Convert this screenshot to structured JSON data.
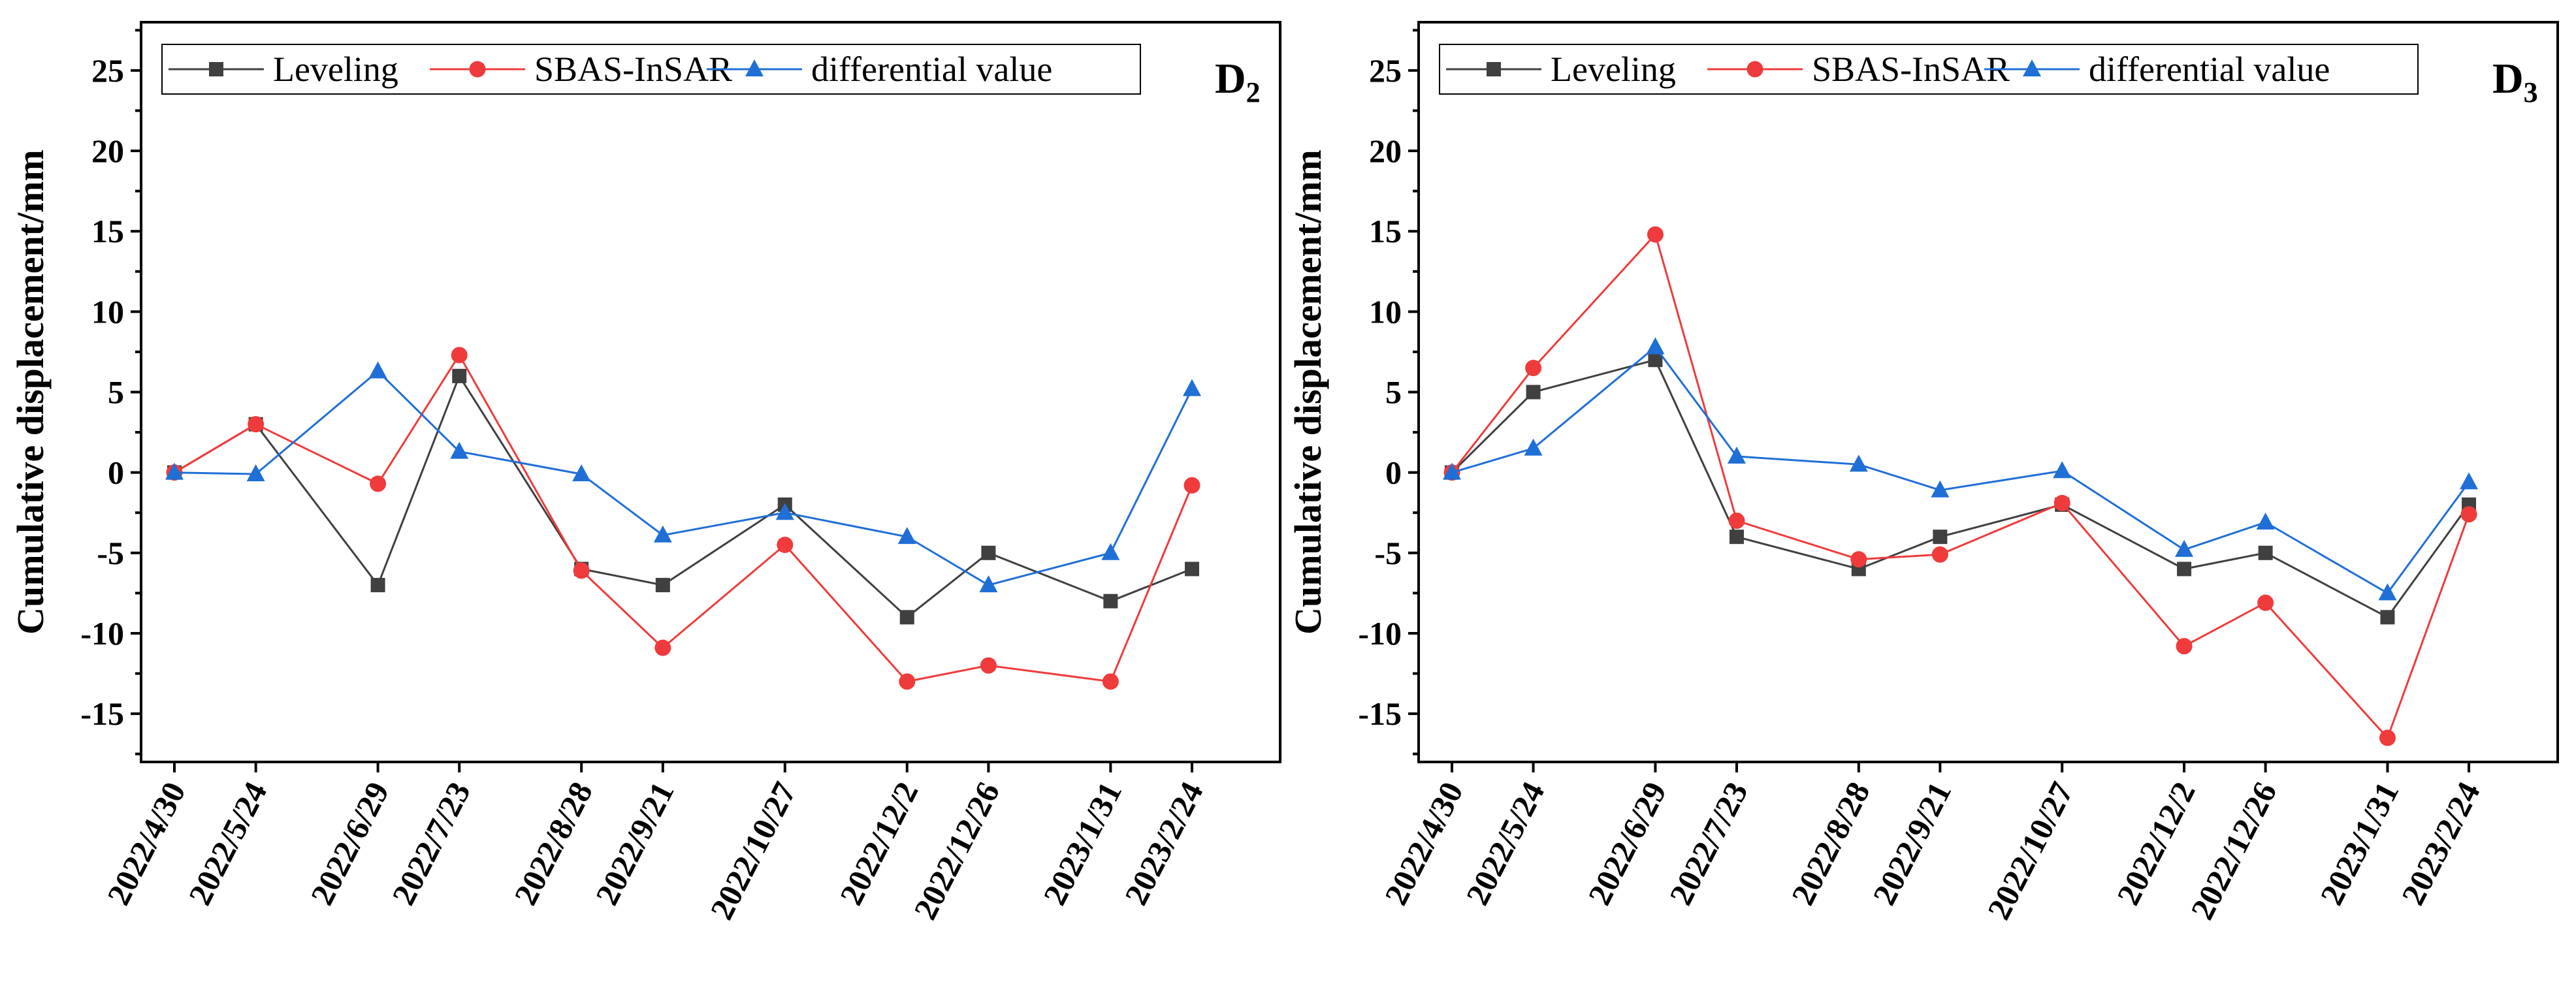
{
  "chart_data": [
    {
      "type": "line",
      "panel_label": "D",
      "panel_sub": "2",
      "ylabel": "Cumulative displacement/mm",
      "xlabel": "",
      "ylim": [
        -18,
        28
      ],
      "yticks": [
        -15,
        -10,
        -5,
        0,
        5,
        10,
        15,
        20,
        25
      ],
      "legend_position": "top",
      "grid": false,
      "x": [
        0,
        24,
        60,
        84,
        120,
        144,
        180,
        216,
        240,
        276,
        300
      ],
      "categories": [
        "2022/4/30",
        "2022/5/24",
        "2022/6/29",
        "2022/7/23",
        "2022/8/28",
        "2022/9/21",
        "2022/10/27",
        "2022/12/2",
        "2022/12/26",
        "2023/1/31",
        "2023/2/24"
      ],
      "series": [
        {
          "name": "Leveling",
          "color": "#404040",
          "marker": "square",
          "values": [
            0,
            3,
            -7,
            6,
            -6,
            -7,
            -2,
            -9,
            -5,
            -8,
            -6
          ]
        },
        {
          "name": "SBAS-InSAR",
          "color": "#ef3b3b",
          "marker": "circle",
          "values": [
            0,
            3,
            -0.7,
            7.3,
            -6.1,
            -10.9,
            -4.5,
            -13,
            -12,
            -13,
            -0.8
          ]
        },
        {
          "name": "differential value",
          "color": "#1f6fd6",
          "marker": "triangle",
          "values": [
            0,
            -0.1,
            6.3,
            1.3,
            -0.1,
            -3.9,
            -2.5,
            -4,
            -7,
            -5,
            5.2
          ]
        }
      ]
    },
    {
      "type": "line",
      "panel_label": "D",
      "panel_sub": "3",
      "ylabel": "Cumulative displacement/mm",
      "xlabel": "",
      "ylim": [
        -18,
        28
      ],
      "yticks": [
        -15,
        -10,
        -5,
        0,
        5,
        10,
        15,
        20,
        25
      ],
      "legend_position": "top",
      "grid": false,
      "x": [
        0,
        24,
        60,
        84,
        120,
        144,
        180,
        216,
        240,
        276,
        300
      ],
      "categories": [
        "2022/4/30",
        "2022/5/24",
        "2022/6/29",
        "2022/7/23",
        "2022/8/28",
        "2022/9/21",
        "2022/10/27",
        "2022/12/2",
        "2022/12/26",
        "2023/1/31",
        "2023/2/24"
      ],
      "series": [
        {
          "name": "Leveling",
          "color": "#404040",
          "marker": "square",
          "values": [
            0,
            5,
            7,
            -4,
            -6,
            -4,
            -2,
            -6,
            -5,
            -9,
            -2
          ]
        },
        {
          "name": "SBAS-InSAR",
          "color": "#ef3b3b",
          "marker": "circle",
          "values": [
            0,
            6.5,
            14.8,
            -3,
            -5.4,
            -5.1,
            -1.9,
            -10.8,
            -8.1,
            -16.5,
            -2.6
          ]
        },
        {
          "name": "differential value",
          "color": "#1f6fd6",
          "marker": "triangle",
          "values": [
            0,
            1.5,
            7.8,
            1,
            0.5,
            -1.1,
            0.1,
            -4.8,
            -3.1,
            -7.5,
            -0.6
          ]
        }
      ]
    }
  ]
}
